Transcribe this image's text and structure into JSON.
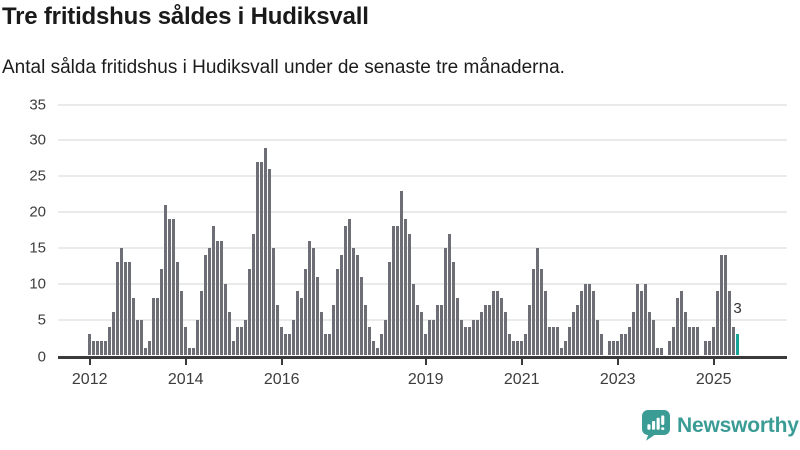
{
  "header": {
    "title": "Tre fritidshus såldes i Hudiksvall",
    "subtitle": "Antal sålda fritidshus i Hudiksvall under de senaste tre månaderna."
  },
  "chart_data": {
    "type": "bar",
    "title": "Tre fritidshus såldes i Hudiksvall",
    "description": "Antal sålda fritidshus i Hudiksvall under de senaste tre månaderna.",
    "frequency": "monthly",
    "x_start": "2012-01",
    "x_end": "2025-07",
    "values": [
      3,
      2,
      2,
      2,
      2,
      4,
      6,
      13,
      15,
      13,
      13,
      8,
      5,
      5,
      1,
      2,
      8,
      8,
      12,
      21,
      19,
      19,
      13,
      9,
      4,
      1,
      1,
      5,
      9,
      14,
      15,
      18,
      16,
      16,
      10,
      6,
      2,
      4,
      4,
      5,
      12,
      17,
      27,
      27,
      29,
      26,
      15,
      7,
      4,
      3,
      3,
      5,
      9,
      8,
      12,
      16,
      15,
      11,
      6,
      3,
      3,
      7,
      12,
      14,
      18,
      19,
      15,
      14,
      11,
      7,
      4,
      2,
      1,
      3,
      5,
      13,
      18,
      18,
      23,
      19,
      17,
      10,
      7,
      6,
      3,
      5,
      5,
      7,
      7,
      15,
      17,
      13,
      8,
      5,
      4,
      4,
      5,
      5,
      6,
      7,
      7,
      9,
      9,
      8,
      6,
      3,
      2,
      2,
      2,
      3,
      7,
      12,
      15,
      12,
      9,
      4,
      4,
      4,
      1,
      2,
      4,
      6,
      7,
      9,
      10,
      10,
      9,
      5,
      3,
      0,
      2,
      2,
      2,
      3,
      3,
      4,
      6,
      10,
      9,
      10,
      6,
      5,
      1,
      1,
      0,
      2,
      4,
      8,
      9,
      6,
      4,
      4,
      4,
      0,
      2,
      2,
      4,
      9,
      14,
      14,
      9,
      4,
      3
    ],
    "highlight": {
      "index": 162,
      "value": 3,
      "label": "3"
    },
    "y_ticks": [
      0,
      5,
      10,
      15,
      20,
      25,
      30,
      35
    ],
    "ylim": [
      0,
      35
    ],
    "x_tick_years": [
      "2012",
      "2014",
      "2016",
      "2019",
      "2021",
      "2023",
      "2025"
    ],
    "grid": true,
    "legend_position": "none",
    "colors": {
      "bar": "#6e6e76",
      "highlight": "#17a398",
      "axis": "#3a3a3a",
      "grid": "#eaeaea",
      "labels": "#3d3d3d"
    }
  },
  "footer": {
    "brand": "Newsworthy",
    "brand_color": "#3b9c95",
    "logo_icon": "newsworthy-speech-bubble-chart-icon"
  }
}
